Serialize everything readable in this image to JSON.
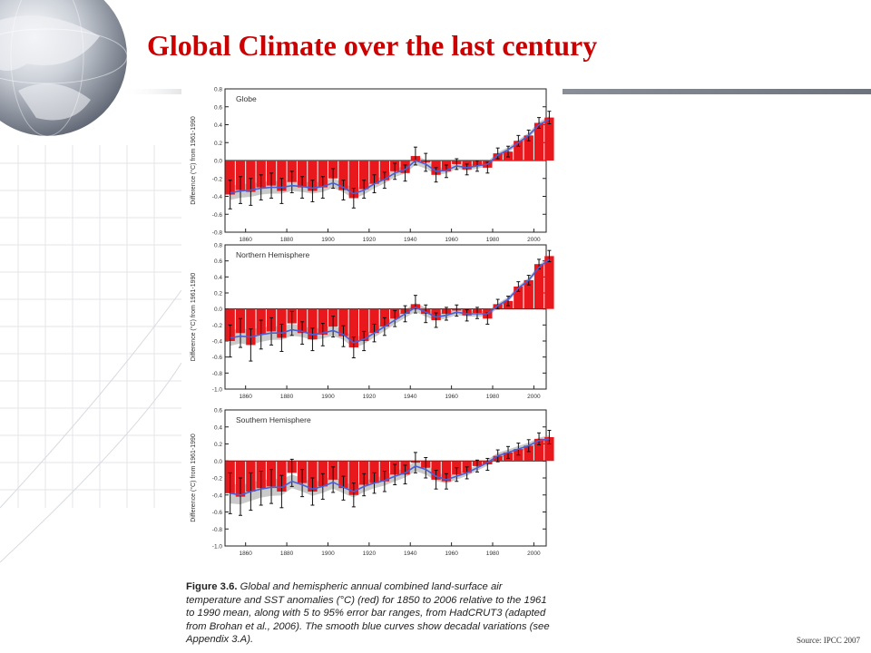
{
  "slide": {
    "title": "Global Climate over the last century",
    "source": "Source: IPCC 2007"
  },
  "caption": {
    "label": "Figure 3.6.",
    "text": "Global and hemispheric annual combined land-surface air temperature and SST anomalies (°C) (red) for 1850 to 2006 relative to the 1961 to 1990 mean, along with 5 to 95% error bar ranges, from HadCRUT3 (adapted from Brohan et al., 2006). The smooth blue curves show decadal variations (see Appendix 3.A)."
  },
  "colors": {
    "title": "#cc0000",
    "bars": "#e8181c",
    "smooth_curve": "#4a5fd8",
    "error_bars": "#111111",
    "band": "#8a8a8a"
  },
  "chart_data": [
    {
      "type": "bar",
      "title": "Globe",
      "ylabel": "Difference (°C) from 1961-1990",
      "xlim": [
        1850,
        2006
      ],
      "ylim": [
        -0.8,
        0.8
      ],
      "yticks": [
        -0.8,
        -0.6,
        -0.4,
        -0.2,
        0.0,
        0.2,
        0.4,
        0.6,
        0.8
      ],
      "xticks": [
        1860,
        1880,
        1900,
        1920,
        1940,
        1960,
        1980,
        2000
      ],
      "x": [
        1850,
        1855,
        1860,
        1865,
        1870,
        1875,
        1880,
        1885,
        1890,
        1895,
        1900,
        1905,
        1910,
        1915,
        1920,
        1925,
        1930,
        1935,
        1940,
        1945,
        1950,
        1955,
        1960,
        1965,
        1970,
        1975,
        1980,
        1985,
        1990,
        1995,
        2000,
        2005
      ],
      "values": [
        -0.38,
        -0.33,
        -0.35,
        -0.3,
        -0.28,
        -0.34,
        -0.24,
        -0.3,
        -0.34,
        -0.3,
        -0.2,
        -0.33,
        -0.42,
        -0.32,
        -0.26,
        -0.22,
        -0.12,
        -0.14,
        0.05,
        -0.02,
        -0.16,
        -0.12,
        -0.04,
        -0.1,
        -0.06,
        -0.08,
        0.08,
        0.1,
        0.22,
        0.28,
        0.42,
        0.48
      ],
      "smoothed": [
        -0.36,
        -0.34,
        -0.33,
        -0.31,
        -0.3,
        -0.3,
        -0.28,
        -0.29,
        -0.31,
        -0.29,
        -0.25,
        -0.3,
        -0.37,
        -0.33,
        -0.26,
        -0.21,
        -0.14,
        -0.1,
        0.0,
        -0.04,
        -0.12,
        -0.11,
        -0.06,
        -0.08,
        -0.06,
        -0.04,
        0.06,
        0.12,
        0.2,
        0.28,
        0.4,
        0.46
      ],
      "error": [
        0.16,
        0.15,
        0.15,
        0.14,
        0.14,
        0.14,
        0.12,
        0.12,
        0.12,
        0.12,
        0.11,
        0.11,
        0.11,
        0.1,
        0.1,
        0.09,
        0.09,
        0.09,
        0.1,
        0.1,
        0.08,
        0.07,
        0.06,
        0.06,
        0.06,
        0.06,
        0.06,
        0.06,
        0.06,
        0.06,
        0.06,
        0.07
      ]
    },
    {
      "type": "bar",
      "title": "Northern Hemisphere",
      "ylabel": "Difference (°C) from 1961-1990",
      "xlim": [
        1850,
        2006
      ],
      "ylim": [
        -1.0,
        0.8
      ],
      "yticks": [
        -1.0,
        -0.8,
        -0.6,
        -0.4,
        -0.2,
        0.0,
        0.2,
        0.4,
        0.6,
        0.8
      ],
      "xticks": [
        1860,
        1880,
        1900,
        1920,
        1940,
        1960,
        1980,
        2000
      ],
      "x": [
        1850,
        1855,
        1860,
        1865,
        1870,
        1875,
        1880,
        1885,
        1890,
        1895,
        1900,
        1905,
        1910,
        1915,
        1920,
        1925,
        1930,
        1935,
        1940,
        1945,
        1950,
        1955,
        1960,
        1965,
        1970,
        1975,
        1980,
        1985,
        1990,
        1995,
        2000,
        2005
      ],
      "values": [
        -0.4,
        -0.3,
        -0.45,
        -0.32,
        -0.28,
        -0.36,
        -0.18,
        -0.3,
        -0.38,
        -0.32,
        -0.22,
        -0.34,
        -0.48,
        -0.4,
        -0.3,
        -0.22,
        -0.12,
        -0.06,
        0.06,
        -0.06,
        -0.14,
        -0.06,
        -0.02,
        -0.08,
        -0.05,
        -0.12,
        0.06,
        0.1,
        0.28,
        0.36,
        0.56,
        0.66
      ],
      "smoothed": [
        -0.36,
        -0.34,
        -0.35,
        -0.32,
        -0.3,
        -0.3,
        -0.26,
        -0.28,
        -0.32,
        -0.3,
        -0.27,
        -0.32,
        -0.42,
        -0.38,
        -0.3,
        -0.22,
        -0.14,
        -0.06,
        0.02,
        -0.04,
        -0.1,
        -0.08,
        -0.04,
        -0.06,
        -0.06,
        -0.06,
        0.04,
        0.12,
        0.26,
        0.36,
        0.52,
        0.62
      ],
      "error": [
        0.2,
        0.18,
        0.2,
        0.18,
        0.17,
        0.17,
        0.15,
        0.14,
        0.14,
        0.14,
        0.13,
        0.13,
        0.13,
        0.12,
        0.11,
        0.11,
        0.1,
        0.1,
        0.11,
        0.11,
        0.09,
        0.08,
        0.07,
        0.07,
        0.07,
        0.07,
        0.06,
        0.06,
        0.06,
        0.06,
        0.06,
        0.07
      ]
    },
    {
      "type": "bar",
      "title": "Southern Hemisphere",
      "ylabel": "Difference (°C) from 1961-1990",
      "xlim": [
        1850,
        2006
      ],
      "ylim": [
        -1.0,
        0.6
      ],
      "yticks": [
        -1.0,
        -0.8,
        -0.6,
        -0.4,
        -0.2,
        0.0,
        0.2,
        0.4,
        0.6
      ],
      "xticks": [
        1860,
        1880,
        1900,
        1920,
        1940,
        1960,
        1980,
        2000
      ],
      "x": [
        1850,
        1855,
        1860,
        1865,
        1870,
        1875,
        1880,
        1885,
        1890,
        1895,
        1900,
        1905,
        1910,
        1915,
        1920,
        1925,
        1930,
        1935,
        1940,
        1945,
        1950,
        1955,
        1960,
        1965,
        1970,
        1975,
        1980,
        1985,
        1990,
        1995,
        2000,
        2005
      ],
      "values": [
        -0.38,
        -0.42,
        -0.36,
        -0.32,
        -0.3,
        -0.36,
        -0.14,
        -0.26,
        -0.36,
        -0.3,
        -0.22,
        -0.32,
        -0.4,
        -0.28,
        -0.26,
        -0.24,
        -0.16,
        -0.16,
        -0.02,
        -0.08,
        -0.22,
        -0.24,
        -0.16,
        -0.14,
        -0.06,
        -0.04,
        0.06,
        0.1,
        0.14,
        0.18,
        0.26,
        0.28
      ],
      "smoothed": [
        -0.38,
        -0.4,
        -0.36,
        -0.33,
        -0.31,
        -0.31,
        -0.24,
        -0.28,
        -0.33,
        -0.3,
        -0.25,
        -0.31,
        -0.36,
        -0.3,
        -0.26,
        -0.23,
        -0.18,
        -0.14,
        -0.06,
        -0.1,
        -0.18,
        -0.22,
        -0.18,
        -0.14,
        -0.08,
        -0.02,
        0.06,
        0.1,
        0.14,
        0.18,
        0.24,
        0.26
      ],
      "error": [
        0.24,
        0.22,
        0.22,
        0.2,
        0.2,
        0.19,
        0.16,
        0.16,
        0.16,
        0.15,
        0.15,
        0.14,
        0.14,
        0.13,
        0.12,
        0.12,
        0.12,
        0.11,
        0.12,
        0.12,
        0.11,
        0.09,
        0.08,
        0.07,
        0.07,
        0.07,
        0.07,
        0.07,
        0.07,
        0.07,
        0.07,
        0.08
      ]
    }
  ]
}
